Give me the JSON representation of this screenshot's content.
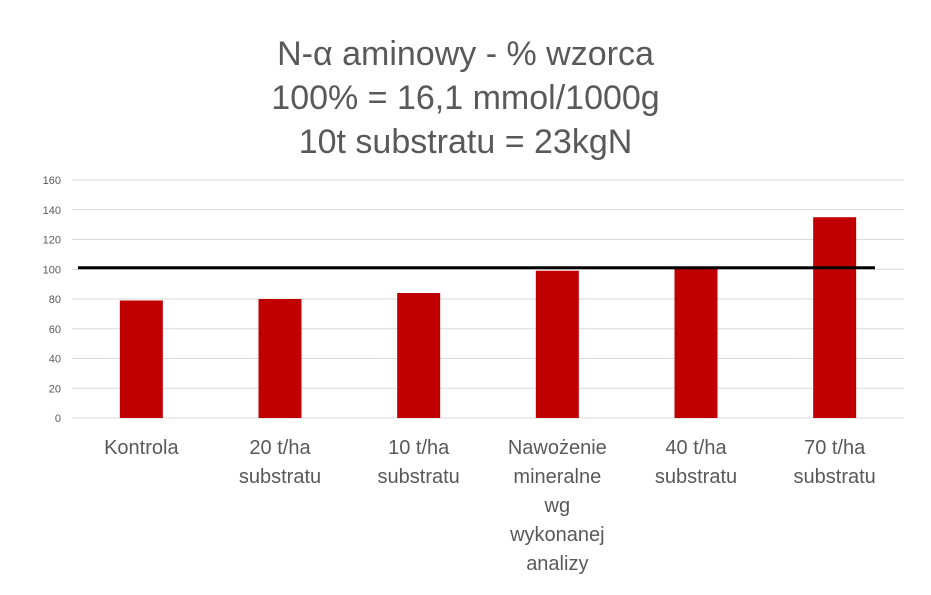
{
  "chart_data": {
    "type": "bar",
    "title_lines": [
      "N-α aminowy - % wzorca",
      "100% = 16,1 mmol/1000g",
      "10t substratu = 23kgN"
    ],
    "categories": [
      [
        "Kontrola"
      ],
      [
        "20 t/ha",
        "substratu"
      ],
      [
        "10 t/ha",
        "substratu"
      ],
      [
        "Nawożenie",
        "mineralne",
        "wg",
        "wykonanej",
        "analizy"
      ],
      [
        "40 t/ha",
        "substratu"
      ],
      [
        "70 t/ha",
        "substratu"
      ]
    ],
    "values": [
      79,
      80,
      84,
      99,
      101,
      135
    ],
    "ylim": [
      0,
      160
    ],
    "yticks": [
      0,
      20,
      40,
      60,
      80,
      100,
      120,
      140,
      160
    ],
    "reference_line": 101,
    "grid": true,
    "legend": "none",
    "colors": {
      "bar": "#c00000",
      "reference_line": "#000000",
      "grid": "#d9d9d9",
      "text": "#595959"
    }
  }
}
